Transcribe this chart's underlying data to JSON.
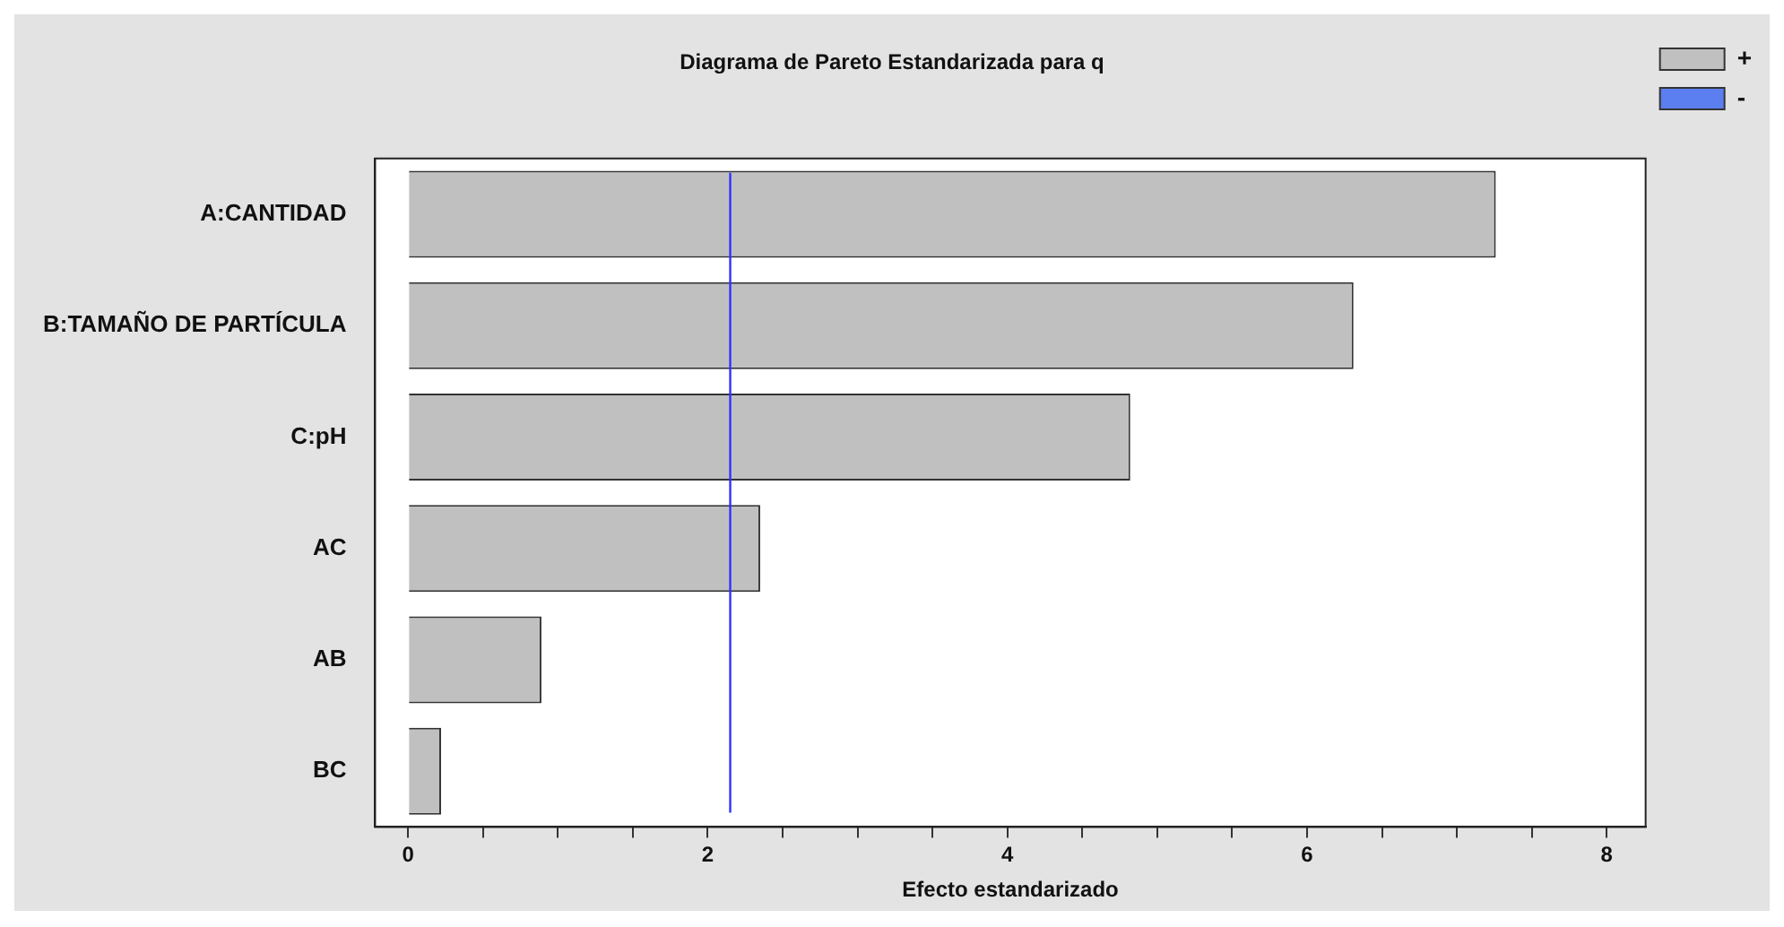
{
  "chart_data": {
    "type": "bar",
    "orientation": "horizontal",
    "title": "Diagrama de Pareto Estandarizada para q",
    "xlabel": "Efecto estandarizado",
    "categories": [
      "A:CANTIDAD",
      "B:TAMAÑO DE PARTÍCULA",
      "C:pH",
      "AC",
      "AB",
      "BC"
    ],
    "series": [
      {
        "name": "+",
        "color": "#c0c0c0",
        "values": [
          7.26,
          6.31,
          4.82,
          2.35,
          0.89,
          0.22
        ]
      },
      {
        "name": "-",
        "color": "#5b7ff0",
        "values": [
          null,
          null,
          null,
          null,
          null,
          null
        ]
      }
    ],
    "xlim": [
      -0.22,
      8.26
    ],
    "xticks": [
      0,
      {
        "value": 0.5,
        "label": null
      },
      {
        "value": 1,
        "label": null
      },
      {
        "value": 1.5,
        "label": null
      },
      2,
      {
        "value": 2.5,
        "label": null
      },
      {
        "value": 3,
        "label": null
      },
      {
        "value": 3.5,
        "label": null
      },
      4,
      {
        "value": 4.5,
        "label": null
      },
      {
        "value": 5,
        "label": null
      },
      {
        "value": 5.5,
        "label": null
      },
      6,
      {
        "value": 6.5,
        "label": null
      },
      {
        "value": 7,
        "label": null
      },
      {
        "value": 7.5,
        "label": null
      },
      8
    ],
    "ref_lines": [
      {
        "axis": "x",
        "value": 2.15,
        "color": "#3030ff"
      }
    ],
    "grid": false,
    "legend": "right"
  }
}
